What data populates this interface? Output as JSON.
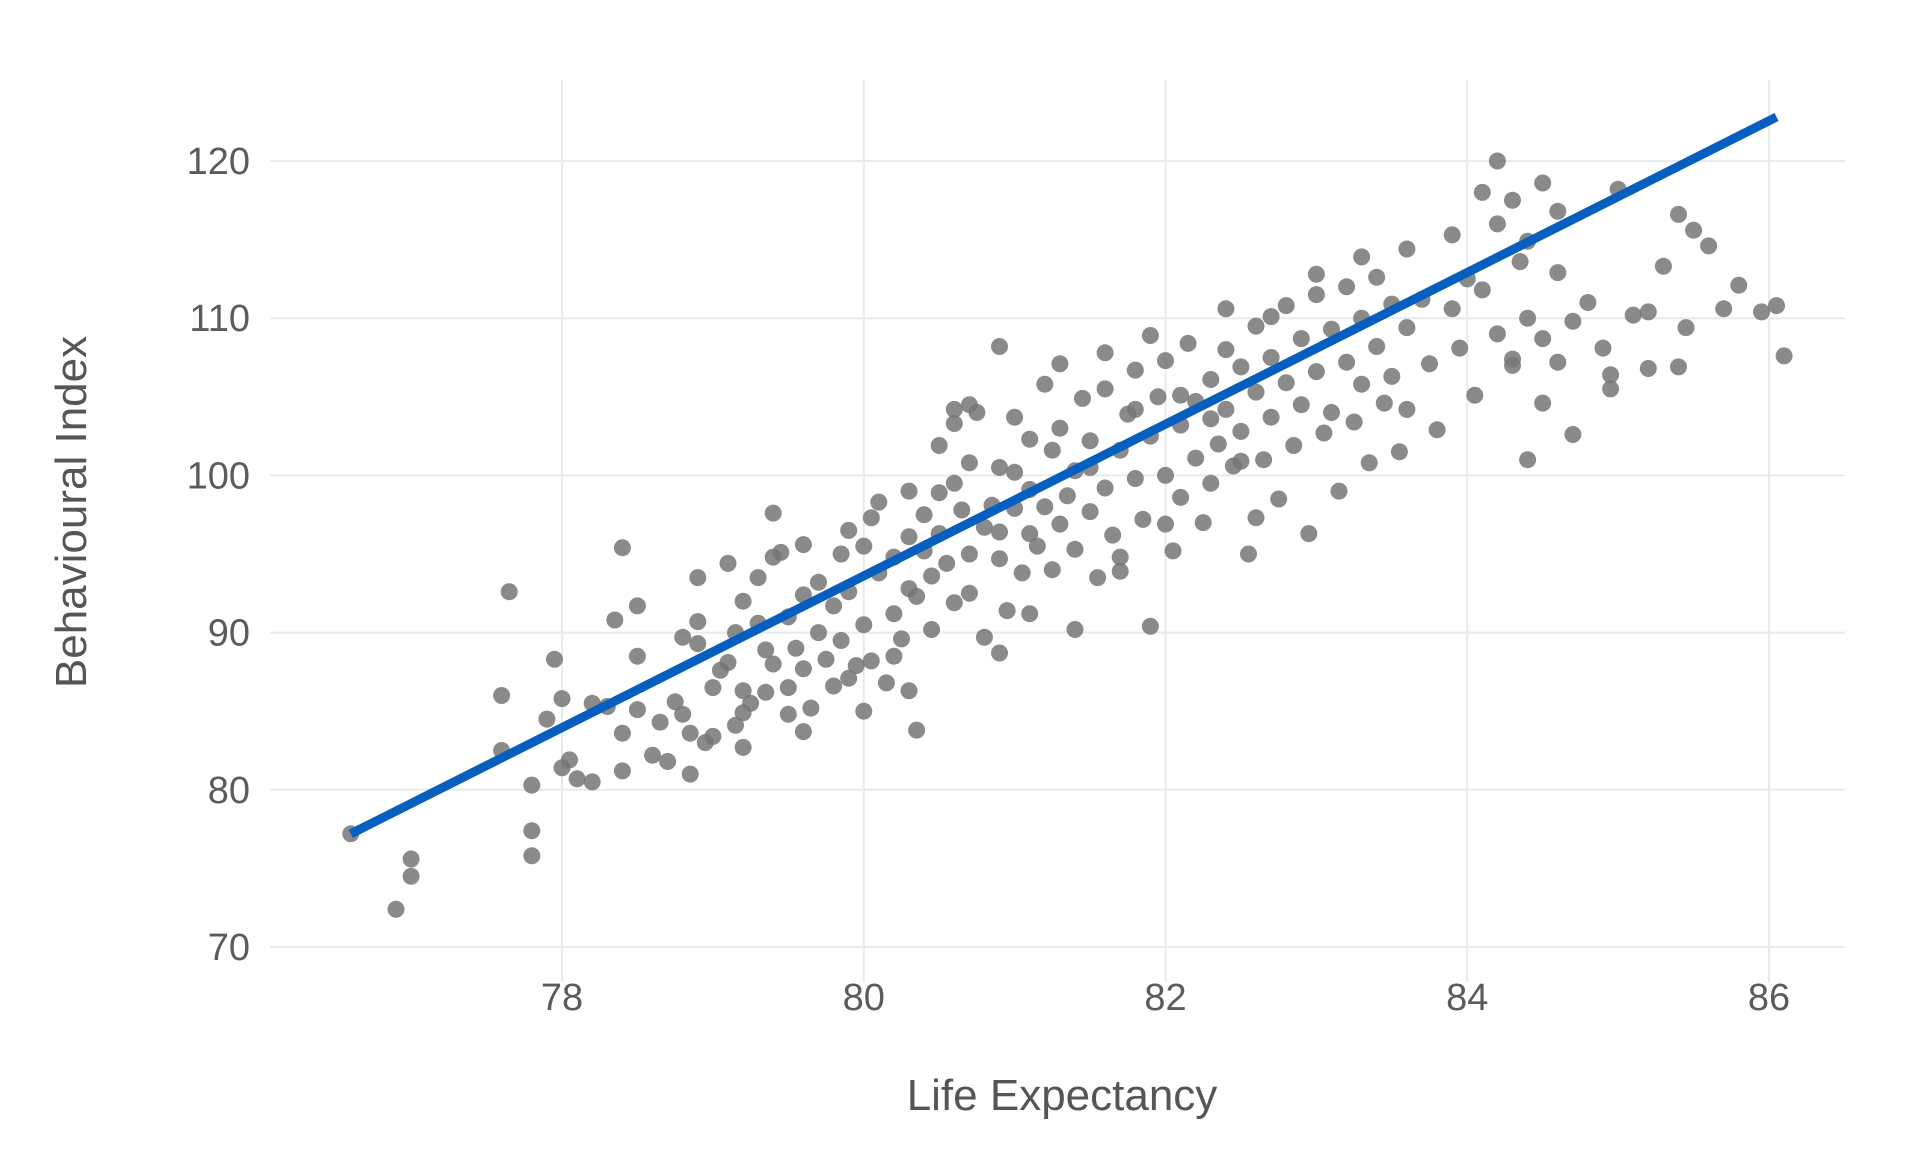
{
  "chart_data": {
    "type": "scatter",
    "xlabel": "Life Expectancy",
    "ylabel": "Behavioural Index",
    "xlim": [
      76.2,
      86.5
    ],
    "ylim": [
      69,
      125
    ],
    "x_ticks": [
      78,
      80,
      82,
      84,
      86
    ],
    "y_ticks": [
      70,
      80,
      90,
      100,
      110,
      120
    ],
    "grid": true,
    "colors": {
      "points": "#767676",
      "fit_line": "#065fbe",
      "grid": "#e6ecee",
      "text": "#5b5b5b"
    },
    "fit_line": {
      "x": [
        76.6,
        86.05
      ],
      "y": [
        77.2,
        122.8
      ]
    },
    "points": [
      [
        76.6,
        77.2
      ],
      [
        76.9,
        72.4
      ],
      [
        77.0,
        75.6
      ],
      [
        77.0,
        74.5
      ],
      [
        77.6,
        86.0
      ],
      [
        77.6,
        82.5
      ],
      [
        77.65,
        92.6
      ],
      [
        77.8,
        77.4
      ],
      [
        77.8,
        75.8
      ],
      [
        77.8,
        80.3
      ],
      [
        77.9,
        84.5
      ],
      [
        77.95,
        88.3
      ],
      [
        78.0,
        85.8
      ],
      [
        78.0,
        81.4
      ],
      [
        78.05,
        81.9
      ],
      [
        78.1,
        80.7
      ],
      [
        78.2,
        85.5
      ],
      [
        78.2,
        80.5
      ],
      [
        78.3,
        85.3
      ],
      [
        78.35,
        90.8
      ],
      [
        78.4,
        83.6
      ],
      [
        78.4,
        81.2
      ],
      [
        78.4,
        95.4
      ],
      [
        78.5,
        88.5
      ],
      [
        78.5,
        91.7
      ],
      [
        78.5,
        85.1
      ],
      [
        78.6,
        82.2
      ],
      [
        78.65,
        84.3
      ],
      [
        78.7,
        81.8
      ],
      [
        78.75,
        85.6
      ],
      [
        78.8,
        84.8
      ],
      [
        78.8,
        89.7
      ],
      [
        78.85,
        83.6
      ],
      [
        78.85,
        81.0
      ],
      [
        78.9,
        93.5
      ],
      [
        78.9,
        90.7
      ],
      [
        78.9,
        89.3
      ],
      [
        78.95,
        83.0
      ],
      [
        79.0,
        83.4
      ],
      [
        79.0,
        86.5
      ],
      [
        79.05,
        87.6
      ],
      [
        79.1,
        94.4
      ],
      [
        79.1,
        88.1
      ],
      [
        79.15,
        90.0
      ],
      [
        79.15,
        84.1
      ],
      [
        79.2,
        82.7
      ],
      [
        79.2,
        84.9
      ],
      [
        79.2,
        86.3
      ],
      [
        79.2,
        92.0
      ],
      [
        79.25,
        85.5
      ],
      [
        79.3,
        90.6
      ],
      [
        79.3,
        93.5
      ],
      [
        79.35,
        88.9
      ],
      [
        79.35,
        86.2
      ],
      [
        79.4,
        94.8
      ],
      [
        79.4,
        88.0
      ],
      [
        79.45,
        95.1
      ],
      [
        79.5,
        91.0
      ],
      [
        79.5,
        86.5
      ],
      [
        79.5,
        84.8
      ],
      [
        79.55,
        89.0
      ],
      [
        79.6,
        83.7
      ],
      [
        79.6,
        87.7
      ],
      [
        79.6,
        92.4
      ],
      [
        79.65,
        85.2
      ],
      [
        79.7,
        90.0
      ],
      [
        79.7,
        93.2
      ],
      [
        79.75,
        88.3
      ],
      [
        79.8,
        86.6
      ],
      [
        79.8,
        91.7
      ],
      [
        79.85,
        95.0
      ],
      [
        79.85,
        89.5
      ],
      [
        79.9,
        96.5
      ],
      [
        79.9,
        92.6
      ],
      [
        79.95,
        87.9
      ],
      [
        80.0,
        85.0
      ],
      [
        80.0,
        90.5
      ],
      [
        80.0,
        95.5
      ],
      [
        80.05,
        88.2
      ],
      [
        80.05,
        97.3
      ],
      [
        80.1,
        93.8
      ],
      [
        80.1,
        98.3
      ],
      [
        80.15,
        86.8
      ],
      [
        80.2,
        91.2
      ],
      [
        80.2,
        94.8
      ],
      [
        80.25,
        89.6
      ],
      [
        80.3,
        96.1
      ],
      [
        80.3,
        86.3
      ],
      [
        80.3,
        99.0
      ],
      [
        80.35,
        92.3
      ],
      [
        80.35,
        83.8
      ],
      [
        80.4,
        95.2
      ],
      [
        80.4,
        97.5
      ],
      [
        80.45,
        90.2
      ],
      [
        80.45,
        93.6
      ],
      [
        80.5,
        101.9
      ],
      [
        80.5,
        98.9
      ],
      [
        80.5,
        96.3
      ],
      [
        80.55,
        94.4
      ],
      [
        80.6,
        103.3
      ],
      [
        80.6,
        104.2
      ],
      [
        80.6,
        99.5
      ],
      [
        80.6,
        91.9
      ],
      [
        80.65,
        97.8
      ],
      [
        80.7,
        95.0
      ],
      [
        80.7,
        100.8
      ],
      [
        80.7,
        92.5
      ],
      [
        80.75,
        104.0
      ],
      [
        80.8,
        96.7
      ],
      [
        80.8,
        89.7
      ],
      [
        80.85,
        98.1
      ],
      [
        80.9,
        100.5
      ],
      [
        80.9,
        94.7
      ],
      [
        80.95,
        91.4
      ],
      [
        81.0,
        103.7
      ],
      [
        81.0,
        97.9
      ],
      [
        81.0,
        100.2
      ],
      [
        81.05,
        93.8
      ],
      [
        81.1,
        96.3
      ],
      [
        81.1,
        102.3
      ],
      [
        81.1,
        99.1
      ],
      [
        81.15,
        95.5
      ],
      [
        81.2,
        105.8
      ],
      [
        81.2,
        98.0
      ],
      [
        81.25,
        101.6
      ],
      [
        81.25,
        94.0
      ],
      [
        81.3,
        96.9
      ],
      [
        81.3,
        103.0
      ],
      [
        81.35,
        98.7
      ],
      [
        81.4,
        95.3
      ],
      [
        81.4,
        90.2
      ],
      [
        81.4,
        100.3
      ],
      [
        81.45,
        104.9
      ],
      [
        81.5,
        97.7
      ],
      [
        81.5,
        102.2
      ],
      [
        81.55,
        93.5
      ],
      [
        81.6,
        105.5
      ],
      [
        81.6,
        99.2
      ],
      [
        81.6,
        107.8
      ],
      [
        81.65,
        96.2
      ],
      [
        81.7,
        101.6
      ],
      [
        81.7,
        94.8
      ],
      [
        81.75,
        103.9
      ],
      [
        81.8,
        99.8
      ],
      [
        81.8,
        106.7
      ],
      [
        81.85,
        97.2
      ],
      [
        81.9,
        102.5
      ],
      [
        81.9,
        90.4
      ],
      [
        81.95,
        105.0
      ],
      [
        82.0,
        100.0
      ],
      [
        82.0,
        107.3
      ],
      [
        82.05,
        95.2
      ],
      [
        82.1,
        103.2
      ],
      [
        82.1,
        98.6
      ],
      [
        82.15,
        108.4
      ],
      [
        82.2,
        101.1
      ],
      [
        82.2,
        104.7
      ],
      [
        82.25,
        97.0
      ],
      [
        82.3,
        106.1
      ],
      [
        82.3,
        99.5
      ],
      [
        82.35,
        102.0
      ],
      [
        82.4,
        108.0
      ],
      [
        82.4,
        104.2
      ],
      [
        82.45,
        100.6
      ],
      [
        82.5,
        106.9
      ],
      [
        82.5,
        102.8
      ],
      [
        82.55,
        95.0
      ],
      [
        82.6,
        105.3
      ],
      [
        82.6,
        109.5
      ],
      [
        82.65,
        101.0
      ],
      [
        82.7,
        107.5
      ],
      [
        82.7,
        103.7
      ],
      [
        82.75,
        98.5
      ],
      [
        82.8,
        110.8
      ],
      [
        82.8,
        105.9
      ],
      [
        82.85,
        101.9
      ],
      [
        82.9,
        108.7
      ],
      [
        82.9,
        104.5
      ],
      [
        82.95,
        96.3
      ],
      [
        83.0,
        111.5
      ],
      [
        83.0,
        106.6
      ],
      [
        83.05,
        102.7
      ],
      [
        83.1,
        109.3
      ],
      [
        83.1,
        104.0
      ],
      [
        83.15,
        99.0
      ],
      [
        83.2,
        112.0
      ],
      [
        83.2,
        107.2
      ],
      [
        83.25,
        103.4
      ],
      [
        83.3,
        110.0
      ],
      [
        83.3,
        105.8
      ],
      [
        83.35,
        100.8
      ],
      [
        83.4,
        112.6
      ],
      [
        83.4,
        108.2
      ],
      [
        83.45,
        104.6
      ],
      [
        83.5,
        110.9
      ],
      [
        83.5,
        106.3
      ],
      [
        83.55,
        101.5
      ],
      [
        83.6,
        109.4
      ],
      [
        83.6,
        104.2
      ],
      [
        83.7,
        111.2
      ],
      [
        83.75,
        107.1
      ],
      [
        83.8,
        102.9
      ],
      [
        83.9,
        110.6
      ],
      [
        83.95,
        108.1
      ],
      [
        84.0,
        112.5
      ],
      [
        84.05,
        105.1
      ],
      [
        84.1,
        111.8
      ],
      [
        84.2,
        109.0
      ],
      [
        84.3,
        107.4
      ],
      [
        84.35,
        113.6
      ],
      [
        84.4,
        110.0
      ],
      [
        84.5,
        108.7
      ],
      [
        84.6,
        112.9
      ],
      [
        84.8,
        111.0
      ],
      [
        84.95,
        105.5
      ],
      [
        85.1,
        110.2
      ],
      [
        85.2,
        106.8
      ],
      [
        85.3,
        113.3
      ],
      [
        85.45,
        109.4
      ],
      [
        85.6,
        114.6
      ],
      [
        85.7,
        110.6
      ],
      [
        82.1,
        105.1
      ],
      [
        82.3,
        103.6
      ],
      [
        82.5,
        100.9
      ],
      [
        81.8,
        104.2
      ],
      [
        82.6,
        97.3
      ],
      [
        81.5,
        100.5
      ],
      [
        80.9,
        96.4
      ],
      [
        81.7,
        93.9
      ],
      [
        82.0,
        96.9
      ],
      [
        80.3,
        92.8
      ],
      [
        80.9,
        88.7
      ],
      [
        81.1,
        91.2
      ],
      [
        80.2,
        88.5
      ],
      [
        79.9,
        87.1
      ],
      [
        79.6,
        95.6
      ],
      [
        79.4,
        97.6
      ],
      [
        80.7,
        104.5
      ],
      [
        80.9,
        108.2
      ],
      [
        81.3,
        107.1
      ],
      [
        81.9,
        108.9
      ],
      [
        82.4,
        110.6
      ],
      [
        82.7,
        110.1
      ],
      [
        83.0,
        112.8
      ],
      [
        83.3,
        113.9
      ],
      [
        83.6,
        114.4
      ],
      [
        83.9,
        115.3
      ],
      [
        84.2,
        116.0
      ],
      [
        84.4,
        114.9
      ],
      [
        84.6,
        116.8
      ],
      [
        84.1,
        118.0
      ],
      [
        84.2,
        120.0
      ],
      [
        84.3,
        117.5
      ],
      [
        84.5,
        118.6
      ],
      [
        85.0,
        118.2
      ],
      [
        85.4,
        116.6
      ],
      [
        85.5,
        115.6
      ],
      [
        84.7,
        109.8
      ],
      [
        85.2,
        110.4
      ],
      [
        85.8,
        112.1
      ],
      [
        86.05,
        110.8
      ],
      [
        86.1,
        107.6
      ],
      [
        85.95,
        110.4
      ],
      [
        85.4,
        106.9
      ],
      [
        84.95,
        106.4
      ],
      [
        84.9,
        108.1
      ],
      [
        84.5,
        104.6
      ],
      [
        84.7,
        102.6
      ],
      [
        84.4,
        101.0
      ],
      [
        84.6,
        107.2
      ],
      [
        84.3,
        107.0
      ]
    ]
  }
}
